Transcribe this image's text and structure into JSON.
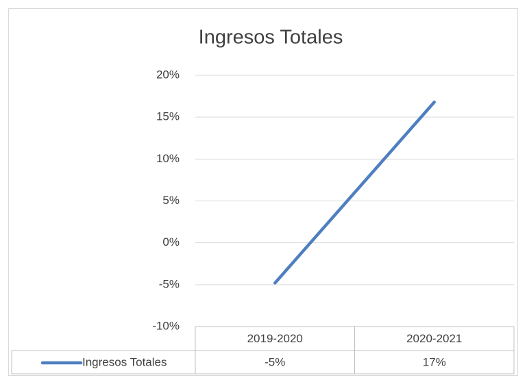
{
  "chart_data": {
    "type": "line",
    "title": "Ingresos Totales",
    "categories": [
      "2019-2020",
      "2020-2021"
    ],
    "series": [
      {
        "name": "Ingresos Totales",
        "color": "#4f7fc0",
        "values": [
          -4.8,
          16.8
        ],
        "value_labels": [
          "-5%",
          "17%"
        ]
      }
    ],
    "ylim": [
      -10,
      20
    ],
    "yticks": [
      {
        "value": -10,
        "label": "-10%"
      },
      {
        "value": -5,
        "label": "-5%"
      },
      {
        "value": 0,
        "label": "0%"
      },
      {
        "value": 5,
        "label": "5%"
      },
      {
        "value": 10,
        "label": "10%"
      },
      {
        "value": 15,
        "label": "15%"
      },
      {
        "value": 20,
        "label": "20%"
      }
    ],
    "grid": true
  }
}
